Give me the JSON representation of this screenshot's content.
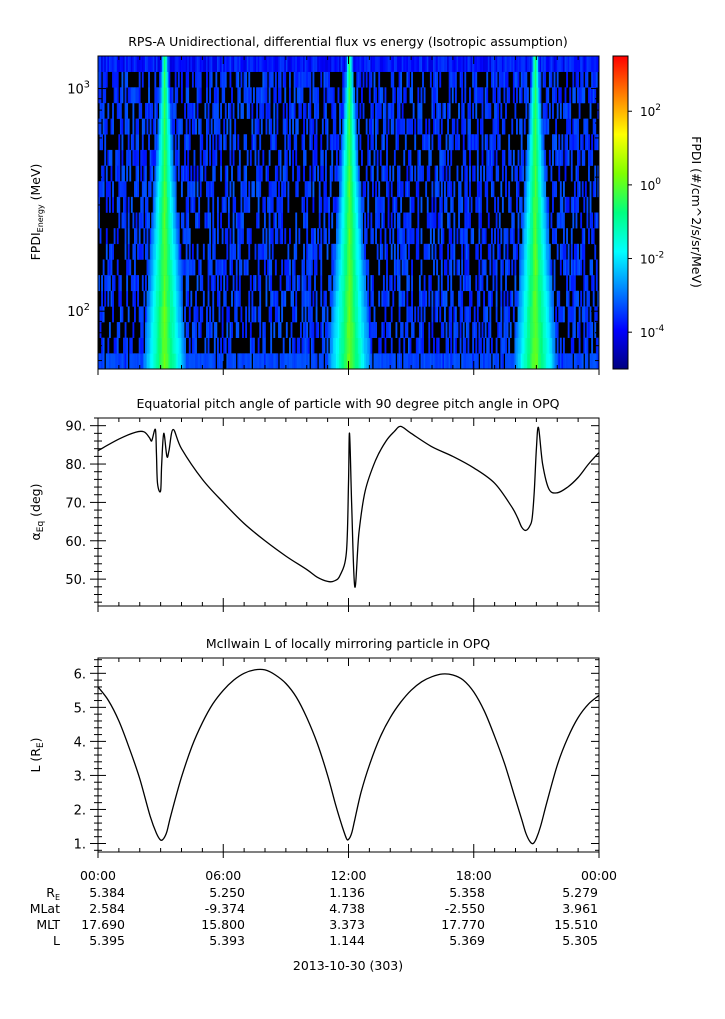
{
  "chart_data": [
    {
      "type": "heatmap",
      "title": "RPS-A Unidirectional, differential flux vs energy (Isotropic assumption)",
      "ylabel_main": "FPDI",
      "ylabel_sub": "Energy",
      "ylabel_unit": " (MeV)",
      "yscale": "log",
      "ylim": [
        55,
        1400
      ],
      "y_ticks": [
        {
          "value": 100,
          "label": "10",
          "exp": "2"
        },
        {
          "value": 1000,
          "label": "10",
          "exp": "3"
        }
      ],
      "xlim_hours": [
        0,
        24
      ],
      "colorbar": {
        "label": "FPDI (#/cm^2/s/sr/MeV)",
        "scale": "log",
        "zlim_log10": [
          -5,
          3.5
        ],
        "ticks": [
          {
            "log": 2,
            "label": "10",
            "exp": "2"
          },
          {
            "log": 0,
            "label": "10",
            "exp": "0"
          },
          {
            "log": -2,
            "label": "10",
            "exp": "-2"
          },
          {
            "log": -4,
            "label": "10",
            "exp": "-4"
          }
        ],
        "colors": [
          "#000080",
          "#0000ff",
          "#0080ff",
          "#00ffff",
          "#00ff80",
          "#80ff00",
          "#ffff00",
          "#ff8000",
          "#ff0000"
        ]
      },
      "belt_crossings_hours": [
        3.0,
        3.4,
        11.9,
        12.2,
        20.8,
        21.1
      ],
      "background_log10": -3.5
    },
    {
      "type": "line",
      "title": "Equatorial pitch angle of particle with 90 degree pitch angle in OPQ",
      "ylabel_main": "α",
      "ylabel_sub": "Eq",
      "ylabel_unit": " (deg)",
      "ylim": [
        43,
        92
      ],
      "y_ticks": [
        50,
        60,
        70,
        80,
        90
      ],
      "y_tick_labels": [
        "50.",
        "60.",
        "70.",
        "80.",
        "90."
      ],
      "x_hours": [
        0,
        1,
        1.8,
        2.2,
        2.45,
        2.55,
        2.6,
        2.75,
        2.8,
        2.85,
        3.0,
        3.05,
        3.15,
        3.3,
        3.4,
        3.6,
        4.0,
        5.0,
        6.0,
        7.0,
        8.0,
        9.0,
        10.0,
        10.5,
        11.0,
        11.3,
        11.6,
        11.9,
        12.0,
        12.05,
        12.15,
        12.3,
        12.5,
        12.8,
        13.3,
        13.8,
        14.2,
        14.5,
        15.0,
        16.0,
        17.0,
        18.0,
        19.0,
        19.8,
        20.1,
        20.3,
        20.5,
        20.7,
        20.8,
        20.9,
        21.0,
        21.1,
        21.3,
        21.6,
        22.0,
        22.5,
        23.0,
        23.5,
        24.0
      ],
      "values": [
        83.5,
        86.5,
        88.3,
        88.4,
        87.0,
        86.0,
        86.5,
        89.0,
        83.0,
        75.0,
        73.0,
        80.0,
        88.0,
        82.0,
        83.5,
        89.0,
        84.0,
        76.0,
        70.0,
        64.5,
        60.0,
        56.0,
        52.5,
        50.5,
        49.4,
        49.5,
        51.0,
        57.0,
        75.0,
        88.0,
        70.0,
        48.0,
        62.0,
        73.0,
        81.0,
        86.0,
        88.5,
        89.8,
        88.0,
        84.5,
        82.0,
        79.0,
        75.0,
        69.0,
        66.0,
        63.5,
        62.7,
        64.0,
        66.0,
        73.0,
        84.0,
        89.5,
        80.0,
        73.5,
        72.5,
        74.0,
        76.5,
        80.0,
        83.0
      ],
      "xlim_hours": [
        0,
        24
      ]
    },
    {
      "type": "line",
      "title": "McIlwain L of locally mirroring particle in OPQ",
      "ylabel_main": "L (R",
      "ylabel_sub": "E",
      "ylabel_unit": ")",
      "ylim": [
        0.75,
        6.45
      ],
      "y_ticks": [
        1,
        2,
        3,
        4,
        5,
        6
      ],
      "y_tick_labels": [
        "1.",
        "2.",
        "3.",
        "4.",
        "5.",
        "6."
      ],
      "x_hours": [
        0,
        0.5,
        1.0,
        1.5,
        2.0,
        2.5,
        2.8,
        3.0,
        3.15,
        3.3,
        3.5,
        4.0,
        4.5,
        5.0,
        5.5,
        6.0,
        6.5,
        7.0,
        7.5,
        8.0,
        8.5,
        9.0,
        9.5,
        10.0,
        10.5,
        11.0,
        11.4,
        11.7,
        11.9,
        12.0,
        12.15,
        12.3,
        12.6,
        13.0,
        13.5,
        14.0,
        14.5,
        15.0,
        15.5,
        16.0,
        16.5,
        17.0,
        17.5,
        18.0,
        18.5,
        19.0,
        19.5,
        20.0,
        20.3,
        20.5,
        20.7,
        20.85,
        21.0,
        21.2,
        21.5,
        22.0,
        22.5,
        23.0,
        23.5,
        24.0
      ],
      "values": [
        5.6,
        5.2,
        4.6,
        3.8,
        2.9,
        1.8,
        1.3,
        1.1,
        1.15,
        1.35,
        1.85,
        2.95,
        3.85,
        4.55,
        5.1,
        5.5,
        5.8,
        6.0,
        6.1,
        6.1,
        5.95,
        5.7,
        5.3,
        4.7,
        3.95,
        3.0,
        2.1,
        1.5,
        1.15,
        1.12,
        1.3,
        1.7,
        2.5,
        3.3,
        4.1,
        4.7,
        5.15,
        5.5,
        5.75,
        5.9,
        5.98,
        5.95,
        5.8,
        5.45,
        4.9,
        4.15,
        3.3,
        2.3,
        1.7,
        1.3,
        1.05,
        1.0,
        1.15,
        1.5,
        2.2,
        3.3,
        4.1,
        4.7,
        5.1,
        5.35
      ],
      "xlim_hours": [
        0,
        24
      ]
    }
  ],
  "x_axis": {
    "tick_labels": [
      "00:00",
      "06:00",
      "12:00",
      "18:00",
      "00:00"
    ],
    "tick_hours": [
      0,
      6,
      12,
      18,
      24
    ],
    "date_label": "2013-10-30 (303)"
  },
  "ephemeris": {
    "rows": [
      {
        "label": "R",
        "label_sub": "E",
        "values": [
          "5.384",
          "5.250",
          "1.136",
          "5.358",
          "5.279"
        ]
      },
      {
        "label": "MLat",
        "label_sub": "",
        "values": [
          "2.584",
          "-9.374",
          "4.738",
          "-2.550",
          "3.961"
        ]
      },
      {
        "label": "MLT",
        "label_sub": "",
        "values": [
          "17.690",
          "15.800",
          "3.373",
          "17.770",
          "15.510"
        ]
      },
      {
        "label": "L",
        "label_sub": "",
        "values": [
          "5.395",
          "5.393",
          "1.144",
          "5.369",
          "5.305"
        ]
      }
    ]
  }
}
